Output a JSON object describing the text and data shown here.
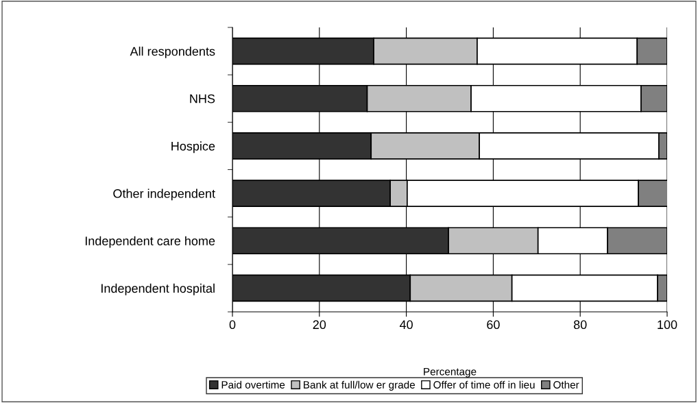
{
  "chart_data": {
    "type": "bar",
    "orientation": "horizontal",
    "stacked": true,
    "xlabel": "Percentage",
    "categories": [
      "All respondents",
      "NHS",
      "Hospice",
      "Other independent",
      "Independent care home",
      "Independent hospital"
    ],
    "series": [
      {
        "name": "Paid overtime",
        "color": "#333333",
        "values": [
          32.5,
          31.0,
          31.9,
          36.3,
          49.7,
          40.9
        ]
      },
      {
        "name": "Bank at full/low er grade",
        "color": "#c0c0c0",
        "values": [
          23.8,
          23.9,
          24.9,
          3.9,
          20.6,
          23.4
        ]
      },
      {
        "name": "Offer of time off in lieu",
        "color": "#ffffff",
        "values": [
          36.8,
          39.1,
          41.3,
          53.2,
          16.0,
          33.5
        ]
      },
      {
        "name": "Other",
        "color": "#808080",
        "values": [
          6.9,
          6.0,
          1.9,
          7.0,
          13.7,
          2.2
        ]
      }
    ],
    "xlim": [
      0,
      100
    ],
    "xticks": [
      0,
      20,
      40,
      60,
      80,
      100
    ],
    "grid": "x",
    "legend": "bottom"
  }
}
